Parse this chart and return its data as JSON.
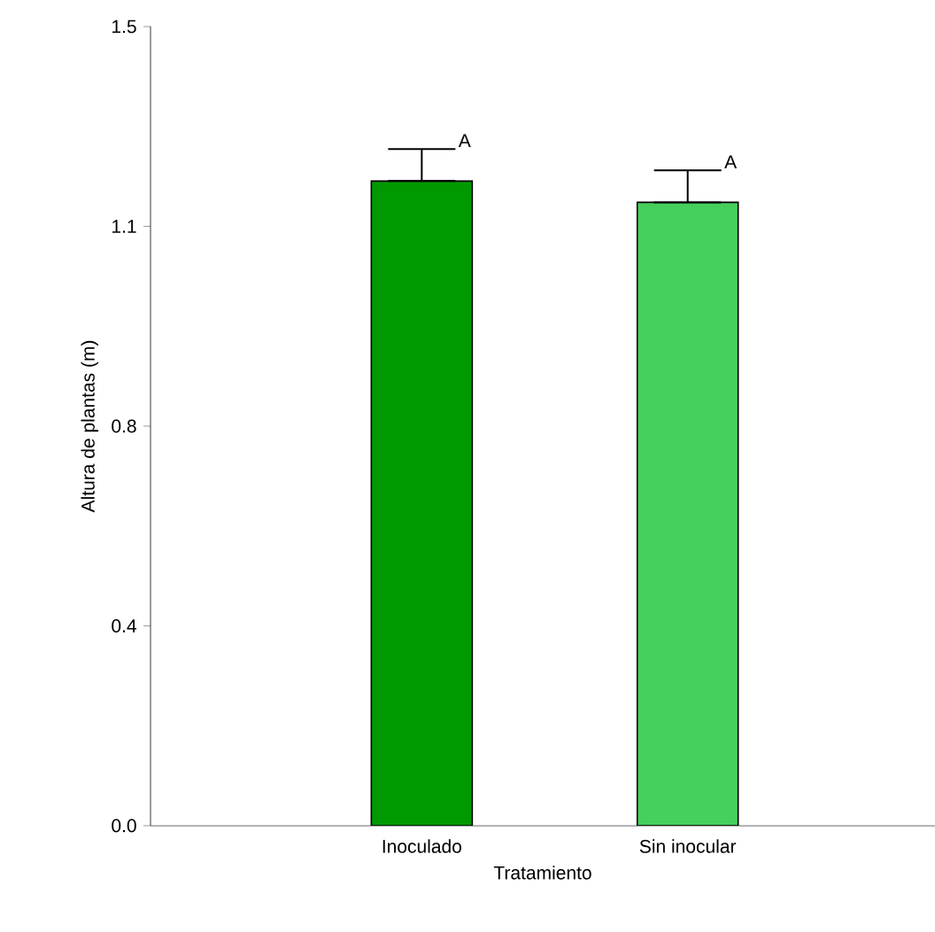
{
  "chart_data": {
    "type": "bar",
    "xlabel": "Tratamiento",
    "ylabel": "Altura de plantas (m)",
    "categories": [
      "Inoculado",
      "Sin inocular"
    ],
    "values": [
      1.21,
      1.17
    ],
    "colors": [
      "#009900",
      "#45cf5b"
    ],
    "errors": [
      [
        1.21,
        1.27
      ],
      [
        1.17,
        1.23
      ]
    ],
    "annotations": [
      {
        "text": "A",
        "x": "Inoculado",
        "y": 1.27
      },
      {
        "text": "A",
        "x": "Sin inocular",
        "y": 1.23
      }
    ],
    "ylim": [
      0,
      1.5
    ],
    "yticks": [
      {
        "value": 0,
        "label": "0.0"
      },
      {
        "value": 0.375,
        "label": "0.4"
      },
      {
        "value": 0.75,
        "label": "0.8"
      },
      {
        "value": 1.125,
        "label": "1.1"
      },
      {
        "value": 1.5,
        "label": "1.5"
      }
    ],
    "grid": false
  }
}
